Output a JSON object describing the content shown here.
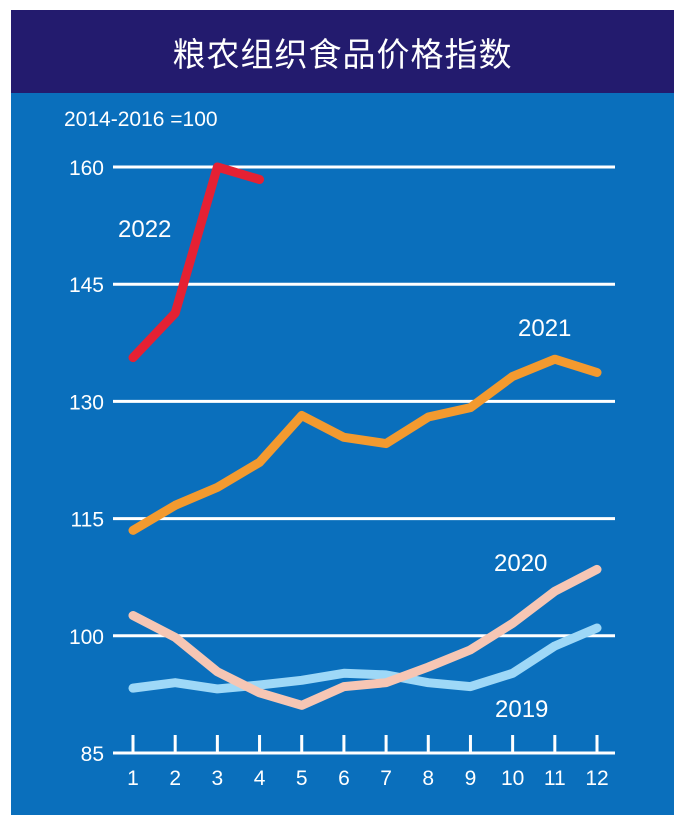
{
  "header": {
    "title": "粮农组织食品价格指数"
  },
  "chart_data": {
    "type": "line",
    "title": "粮农组织食品价格指数",
    "subtitle": "2014-2016 =100",
    "xlabel": "",
    "ylabel": "",
    "x": [
      1,
      2,
      3,
      4,
      5,
      6,
      7,
      8,
      9,
      10,
      11,
      12
    ],
    "x_tick_labels": [
      "1",
      "2",
      "3",
      "4",
      "5",
      "6",
      "7",
      "8",
      "9",
      "10",
      "11",
      "12"
    ],
    "y_ticks": [
      85,
      100,
      115,
      130,
      145,
      160
    ],
    "y_tick_labels": [
      "85",
      "100",
      "115",
      "130",
      "145",
      "160"
    ],
    "ylim": [
      85,
      160
    ],
    "xlim": [
      1,
      12
    ],
    "grid": "horizontal",
    "legend": "inline-labels",
    "series": [
      {
        "name": "2019",
        "color": "#9ed8f7",
        "values": [
          93.3,
          94.0,
          93.2,
          93.7,
          94.3,
          95.2,
          95.0,
          94.0,
          93.5,
          95.2,
          98.7,
          101.0
        ]
      },
      {
        "name": "2020",
        "color": "#f6c6b4",
        "values": [
          102.6,
          99.8,
          95.4,
          92.7,
          91.1,
          93.5,
          94.0,
          96.0,
          98.2,
          101.6,
          105.7,
          108.5
        ]
      },
      {
        "name": "2021",
        "color": "#f39a2f",
        "values": [
          113.5,
          116.7,
          119.0,
          122.2,
          128.2,
          125.4,
          124.6,
          128.0,
          129.2,
          133.2,
          135.4,
          133.7
        ]
      },
      {
        "name": "2022",
        "color": "#e52133",
        "values": [
          135.6,
          141.3,
          160.0,
          158.4
        ]
      }
    ],
    "annotations": [
      {
        "text": "2022",
        "series": "2022",
        "near": "left, between 145 and 160"
      },
      {
        "text": "2021",
        "series": "2021",
        "near": "above month 11"
      },
      {
        "text": "2020",
        "series": "2020",
        "near": "above month 10"
      },
      {
        "text": "2019",
        "series": "2019",
        "near": "below month 10"
      }
    ]
  },
  "colors": {
    "header_bg": "#231b6e",
    "panel_bg": "#0a6fbc",
    "grid": "#ffffff",
    "text": "#ffffff"
  }
}
